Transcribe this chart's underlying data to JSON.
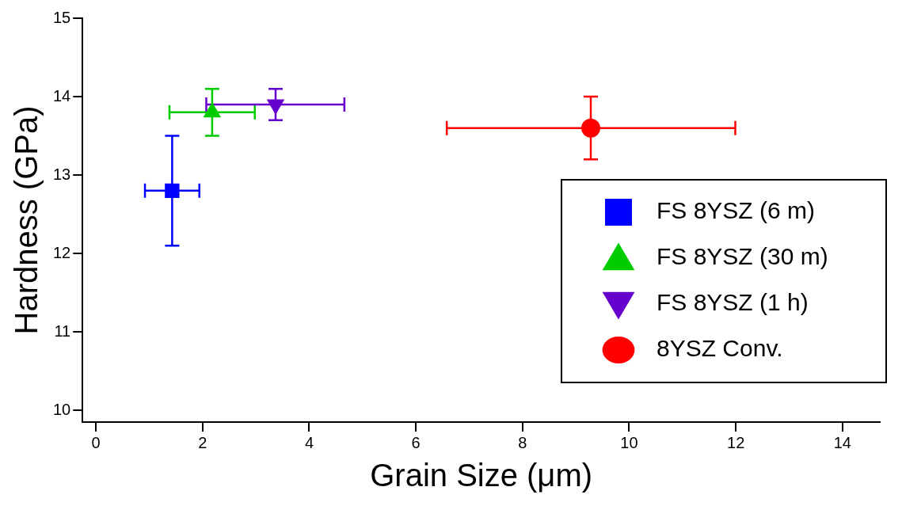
{
  "chart_data": {
    "type": "scatter",
    "xlabel": "Grain Size (μm)",
    "ylabel": "Hardness (GPa)",
    "xlim": [
      -0.25,
      14.7
    ],
    "ylim": [
      9.85,
      15
    ],
    "xticks": [
      0,
      2,
      4,
      6,
      8,
      10,
      12,
      14
    ],
    "yticks": [
      10,
      11,
      12,
      13,
      14,
      15
    ],
    "grid": false,
    "legend": "right",
    "series": [
      {
        "name": "FS 8YSZ (6 m)",
        "color": "#0000ff",
        "marker": "square",
        "x": [
          1.43
        ],
        "values": [
          12.8
        ],
        "errors": [
          [
            12.1,
            13.5
          ]
        ],
        "xerrors": [
          [
            0.92,
            1.94
          ]
        ]
      },
      {
        "name": "FS 8YSZ (30 m)",
        "color": "#00cc00",
        "marker": "triangle",
        "x": [
          2.18
        ],
        "values": [
          13.8
        ],
        "errors": [
          [
            13.5,
            14.1
          ]
        ],
        "xerrors": [
          [
            1.38,
            2.98
          ]
        ]
      },
      {
        "name": "FS 8YSZ (1 h)",
        "color": "#6600cc",
        "marker": "triangle_down",
        "x": [
          3.37
        ],
        "values": [
          13.9
        ],
        "errors": [
          [
            13.7,
            14.1
          ]
        ],
        "xerrors": [
          [
            2.07,
            4.66
          ]
        ]
      },
      {
        "name": "8YSZ Conv.",
        "color": "#ff0000",
        "marker": "circle",
        "x": [
          9.28
        ],
        "values": [
          13.6
        ],
        "errors": [
          [
            13.2,
            14.0
          ]
        ],
        "xerrors": [
          [
            6.58,
            11.99
          ]
        ]
      }
    ]
  }
}
